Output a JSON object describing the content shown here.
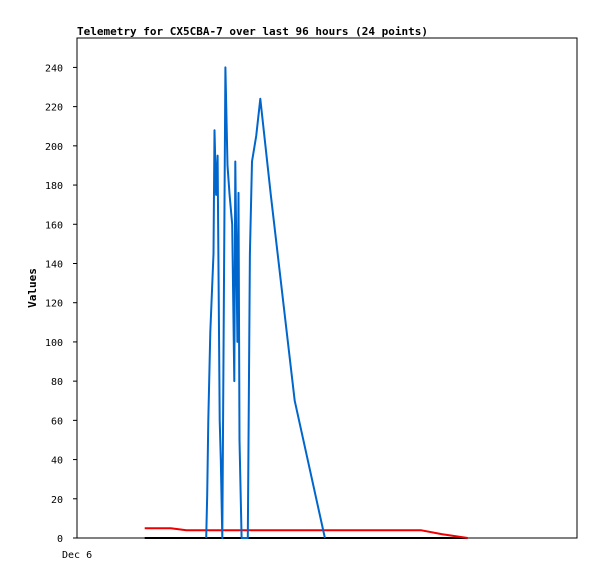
{
  "chart_data": {
    "type": "line",
    "title": "Telemetry for CX5CBA-7 over last 96 hours (24 points)",
    "xlabel": "",
    "ylabel": "Values",
    "x_tick_labels": [
      "Dec 6"
    ],
    "xlim": [
      0,
      96
    ],
    "ylim": [
      0,
      255
    ],
    "y_ticks": [
      0,
      20,
      40,
      60,
      80,
      100,
      120,
      140,
      160,
      180,
      200,
      220,
      240
    ],
    "grid": false,
    "legend": "none",
    "series": [
      {
        "color": "#0066cc",
        "x": [
          24.8,
          25.0,
          25.2,
          25.6,
          26.2,
          26.4,
          26.7,
          27.0,
          27.4,
          27.6,
          27.9,
          28.5,
          28.9,
          29.3,
          29.8,
          30.2,
          30.4,
          30.8,
          31.0,
          31.2,
          31.6,
          32.4,
          32.8,
          33.2,
          33.6,
          34.4,
          35.2,
          37.2,
          41.8,
          47.6
        ],
        "values": [
          0,
          22,
          60,
          105,
          145,
          208,
          175,
          195,
          60,
          40,
          0,
          240,
          190,
          175,
          160,
          80,
          192,
          100,
          176,
          50,
          0,
          0,
          0,
          145,
          192,
          205,
          224,
          175,
          70,
          0
        ]
      },
      {
        "color": "#ee0000",
        "x": [
          13,
          18,
          21,
          26,
          30,
          35,
          45,
          55,
          66,
          70,
          75
        ],
        "values": [
          5,
          5,
          4,
          4,
          4,
          4,
          4,
          4,
          4,
          2,
          0
        ]
      },
      {
        "color": "#000000",
        "x": [
          13,
          20,
          30,
          40,
          50,
          60,
          70,
          75
        ],
        "values": [
          0,
          0,
          0,
          0,
          0,
          0,
          0,
          0
        ]
      }
    ]
  }
}
